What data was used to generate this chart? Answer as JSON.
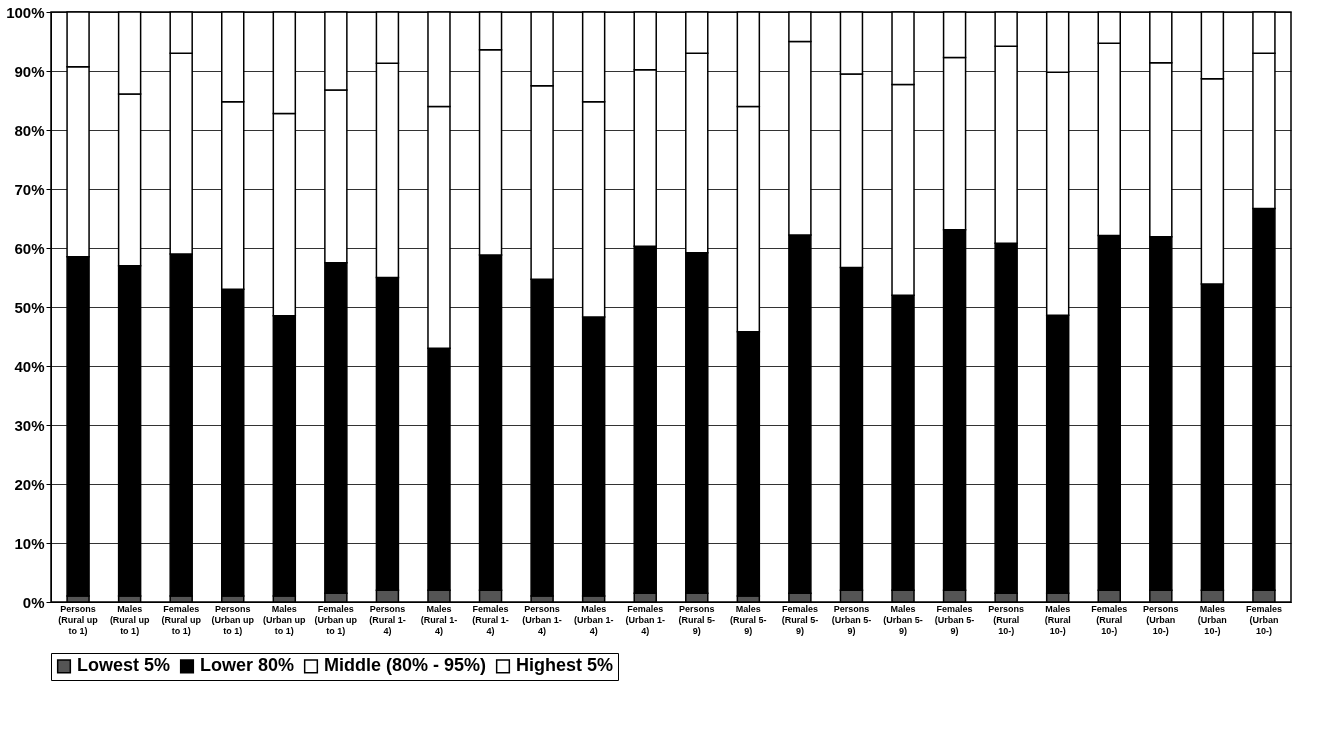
{
  "chart_data": {
    "type": "bar",
    "stacked": true,
    "categories": [
      "Persons (Rural up to 1)",
      "Males (Rural up to 1)",
      "Females (Rural up to 1)",
      "Persons (Urban up to 1)",
      "Males (Urban up to 1)",
      "Females (Urban up to 1)",
      "Persons (Rural 1- 4)",
      "Males (Rural 1- 4)",
      "Females (Rural 1- 4)",
      "Persons (Urban 1- 4)",
      "Males (Urban 1- 4)",
      "Females (Urban 1- 4)",
      "Persons (Rural 5- 9)",
      "Males (Rural 5- 9)",
      "Females (Rural 5- 9)",
      "Persons (Urban 5- 9)",
      "Males (Urban 5- 9)",
      "Females (Urban 5- 9)",
      "Persons (Rural 10-)",
      "Males (Rural 10-)",
      "Females (Rural 10-)",
      "Persons (Urban 10-)",
      "Males (Urban 10-)",
      "Females (Urban 10-)"
    ],
    "series": [
      {
        "name": "Lowest 5%",
        "color": "#555555",
        "values": [
          1,
          1,
          1,
          1,
          1,
          1.5,
          2,
          2,
          2,
          1,
          1,
          1.5,
          1.5,
          1,
          1.5,
          2,
          2,
          2,
          1.5,
          1.5,
          2,
          2,
          2,
          2
        ]
      },
      {
        "name": "Lower 80%",
        "color": "#000000",
        "values": [
          57.5,
          56,
          58,
          52,
          47.5,
          56,
          53,
          41,
          56.8,
          53.7,
          47.3,
          58.8,
          57.7,
          44.8,
          60.7,
          54.7,
          50,
          61.1,
          59.3,
          47.1,
          60.1,
          59.9,
          51.9,
          64.7
        ]
      },
      {
        "name": "Middle (80% - 95%)",
        "color": "#ffffff",
        "values": [
          32.2,
          29.1,
          34,
          31.8,
          34.3,
          29.3,
          36.3,
          41,
          34.8,
          32.8,
          36.5,
          29.9,
          33.8,
          38.2,
          32.8,
          32.8,
          35.7,
          29.2,
          33.4,
          41.2,
          32.6,
          29.5,
          34.8,
          26.3
        ]
      },
      {
        "name": "Highest 5%",
        "color": "#ffffff",
        "values": [
          9.3,
          13.9,
          7,
          15.2,
          17.2,
          13.2,
          8.7,
          16,
          6.4,
          12.5,
          15.2,
          9.8,
          7,
          16,
          5,
          10.5,
          12.3,
          7.7,
          5.8,
          10.2,
          5.3,
          8.6,
          11.3,
          7
        ]
      }
    ],
    "ylim": [
      0,
      100
    ],
    "yticks": [
      {
        "value": 0,
        "label": "0%"
      },
      {
        "value": 10,
        "label": "10%"
      },
      {
        "value": 20,
        "label": "20%"
      },
      {
        "value": 30,
        "label": "30%"
      },
      {
        "value": 40,
        "label": "40%"
      },
      {
        "value": 50,
        "label": "50%"
      },
      {
        "value": 60,
        "label": "60%"
      },
      {
        "value": 70,
        "label": "70%"
      },
      {
        "value": 80,
        "label": "80%"
      },
      {
        "value": 90,
        "label": "90%"
      },
      {
        "value": 100,
        "label": "100%"
      }
    ],
    "grid": "y",
    "legend": "bottom"
  }
}
